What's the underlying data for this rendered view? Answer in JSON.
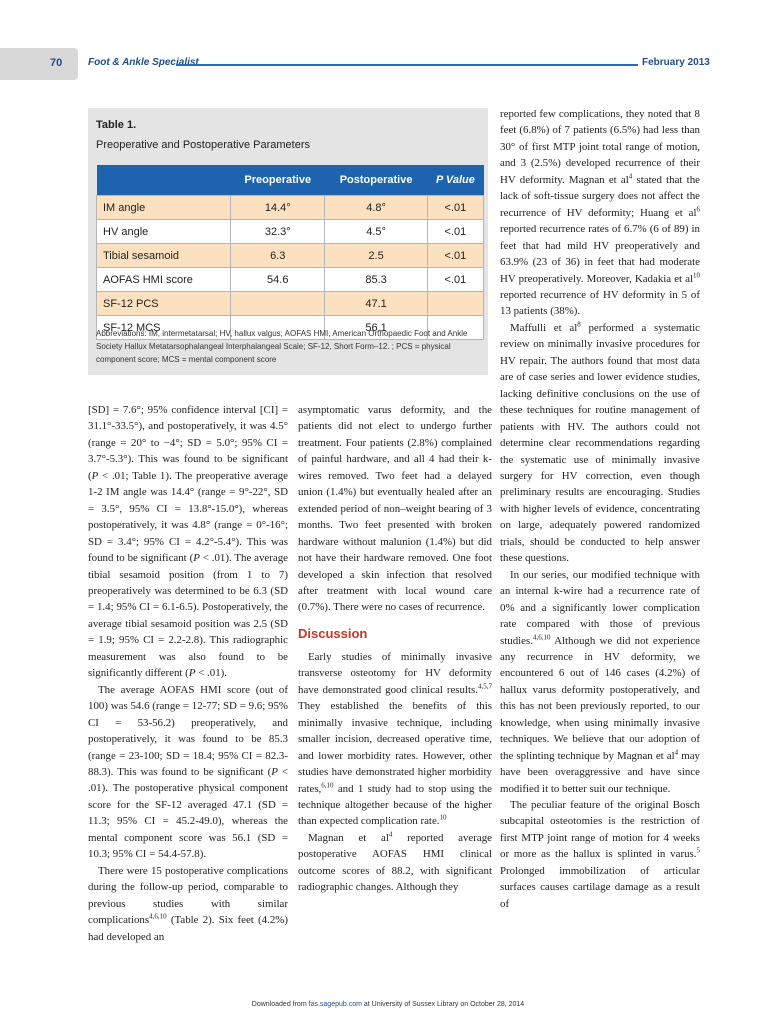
{
  "header": {
    "page_number": "70",
    "journal": "Foot & Ankle Specialist",
    "date": "February 2013"
  },
  "table": {
    "label": "Table 1.",
    "title": "Preoperative and Postoperative Parameters",
    "columns": [
      "Preoperative",
      "Postoperative",
      "P Value"
    ],
    "rows": [
      [
        "IM angle",
        "14.4°",
        "4.8°",
        "<.01"
      ],
      [
        "HV angle",
        "32.3°",
        "4.5°",
        "<.01"
      ],
      [
        "Tibial sesamoid",
        "6.3",
        "2.5",
        "<.01"
      ],
      [
        "AOFAS HMI score",
        "54.6",
        "85.3",
        "<.01"
      ],
      [
        "SF-12 PCS",
        null,
        "47.1",
        null
      ],
      [
        "SF-12 MCS",
        null,
        "56.1",
        null
      ]
    ],
    "footnote": "Abbreviations: IM, intermetatarsal; HV, hallux valgus; AOFAS HMI, American Orthopaedic Foot and Ankle Society Hallux Metatarsophalangeal Interphalangeal Scale; SF-12, Short Form–12. ; PCS = physical component score; MCS = mental component score"
  },
  "body": {
    "columns": [
      {
        "blocks": [
          {
            "runs": [
              "[SD] = 7.6°; 95% confidence interval [CI] = 31.1°-33.5°), and postoperatively, it was 4.5° (range = 20° to −4°; SD = 5.0°; 95% CI = 3.7°-5.3°). This was found to be significant (",
              {
                "i": "P"
              },
              " < .01; Table 1). The preoperative average 1-2 IM angle was 14.4° (range = 9°-22°, SD = 3.5°, 95% CI = 13.8°-15.0°), whereas postoperatively, it was 4.8° (range = 0°-16°; SD = 3.4°; 95% CI = 4.2°-5.4°). This was found to be significant (",
              {
                "i": "P"
              },
              " < .01). The average tibial sesamoid position (from 1 to 7) preoperatively was determined to be 6.3 (SD = 1.4; 95% CI = 6.1-6.5). Postoperatively, the average tibial sesamoid position was 2.5 (SD = 1.9; 95% CI = 2.2-2.8). This radiographic measurement was also found to be significantly different (",
              {
                "i": "P"
              },
              " < .01)."
            ]
          },
          {
            "runs": [
              "The average AOFAS HMI score (out of 100) was 54.6 (range = 12-77; SD = 9.6; 95% CI = 53-56.2) preoperatively, and postoperatively, it was found to be 85.3 (range = 23-100; SD = 18.4; 95% CI = 82.3-88.3). This was found to be significant (",
              {
                "i": "P"
              },
              " < .01). The postoperative physical component score for the SF-12 averaged 47.1 (SD = 11.3; 95% CI = 45.2-49.0), whereas the mental component score was 56.1 (SD = 10.3; 95% CI = 54.4-57.8)."
            ]
          },
          {
            "runs": [
              "There were 15 postoperative complications during the follow-up period, comparable to previous studies with similar complications",
              {
                "sup": "4,6,10"
              },
              " (Table 2). Six feet (4.2%) had developed an"
            ]
          }
        ]
      },
      {
        "blocks": [
          {
            "runs": [
              "asymptomatic varus deformity, and the patients did not elect to undergo further treatment. Four patients (2.8%) complained of painful hardware, and all 4 had their k-wires removed. Two feet had a delayed union (1.4%) but eventually healed after an extended period of non–weight bearing of 3 months. Two feet presented with broken hardware without malunion (1.4%) but did not have their hardware removed. One foot developed a skin infection that resolved after treatment with local wound care (0.7%). There were no cases of recurrence."
            ]
          },
          {
            "heading": "Discussion"
          },
          {
            "runs": [
              "Early studies of minimally invasive transverse osteotomy for HV deformity have demonstrated good clinical results.",
              {
                "sup": "4,5,7"
              },
              " They established the benefits of this minimally invasive technique, including smaller incision, decreased operative time, and lower morbidity rates. However, other studies have demonstrated higher morbidity rates,",
              {
                "sup": "6,10"
              },
              " and 1 study had to stop using the technique altogether because of the higher than expected complication rate.",
              {
                "sup": "10"
              }
            ]
          },
          {
            "runs": [
              "Magnan et al",
              {
                "sup": "4"
              },
              " reported average postoperative AOFAS HMI clinical outcome scores of 88.2, with significant radiographic changes. Although they"
            ]
          }
        ]
      },
      {
        "blocks": [
          {
            "runs": [
              "reported few complications, they noted that 8 feet (6.8%) of 7 patients (6.5%) had less than 30° of first MTP joint total range of motion, and 3 (2.5%) developed recurrence of their HV deformity. Magnan et al",
              {
                "sup": "4"
              },
              " stated that the lack of soft-tissue surgery does not affect the recurrence of HV deformity; Huang et al",
              {
                "sup": "6"
              },
              " reported recurrence rates of 6.7% (6 of 89) in feet that had mild HV preoperatively and 63.9% (23 of 36) in feet that had moderate HV preoperatively. Moreover, Kadakia et al",
              {
                "sup": "10"
              },
              " reported recurrence of HV deformity in 5 of 13 patients (38%)."
            ]
          },
          {
            "runs": [
              "Maffulli et al",
              {
                "sup": "8"
              },
              " performed a systematic review on minimally invasive procedures for HV repair. The authors found that most data are of case series and lower evidence studies, lacking definitive conclusions on the use of these techniques for routine management of patients with HV. The authors could not determine clear recommendations regarding the systematic use of minimally invasive surgery for HV correction, even though preliminary results are encouraging. Studies with higher levels of evidence, concentrating on large, adequately powered randomized trials, should be conducted to help answer these questions."
            ]
          },
          {
            "runs": [
              "In our series, our modified technique with an internal k-wire had a recurrence rate of 0% and a significantly lower complication rate compared with those of previous studies.",
              {
                "sup": "4,6,10"
              },
              " Although we did not experience any recurrence in HV deformity, we encountered 6 out of 146 cases (4.2%) of hallux varus deformity postoperatively, and this has not been previously reported, to our knowledge, when using minimally invasive techniques. We believe that our adoption of the splinting technique by Magnan et al",
              {
                "sup": "4"
              },
              " may have been overaggressive and have since modified it to better suit our technique."
            ]
          },
          {
            "runs": [
              "The peculiar feature of the original Bosch subcapital osteotomies is the restriction of first MTP joint range of motion for 4 weeks or more as the hallux is splinted in varus.",
              {
                "sup": "5"
              },
              " Prolonged immobilization of articular surfaces causes cartilage damage as a result of"
            ]
          }
        ]
      }
    ]
  },
  "footer": {
    "prefix": "Downloaded from",
    "link": "fas.sagepub.com",
    "suffix": "at University of Sussex Library on October 28, 2014"
  }
}
